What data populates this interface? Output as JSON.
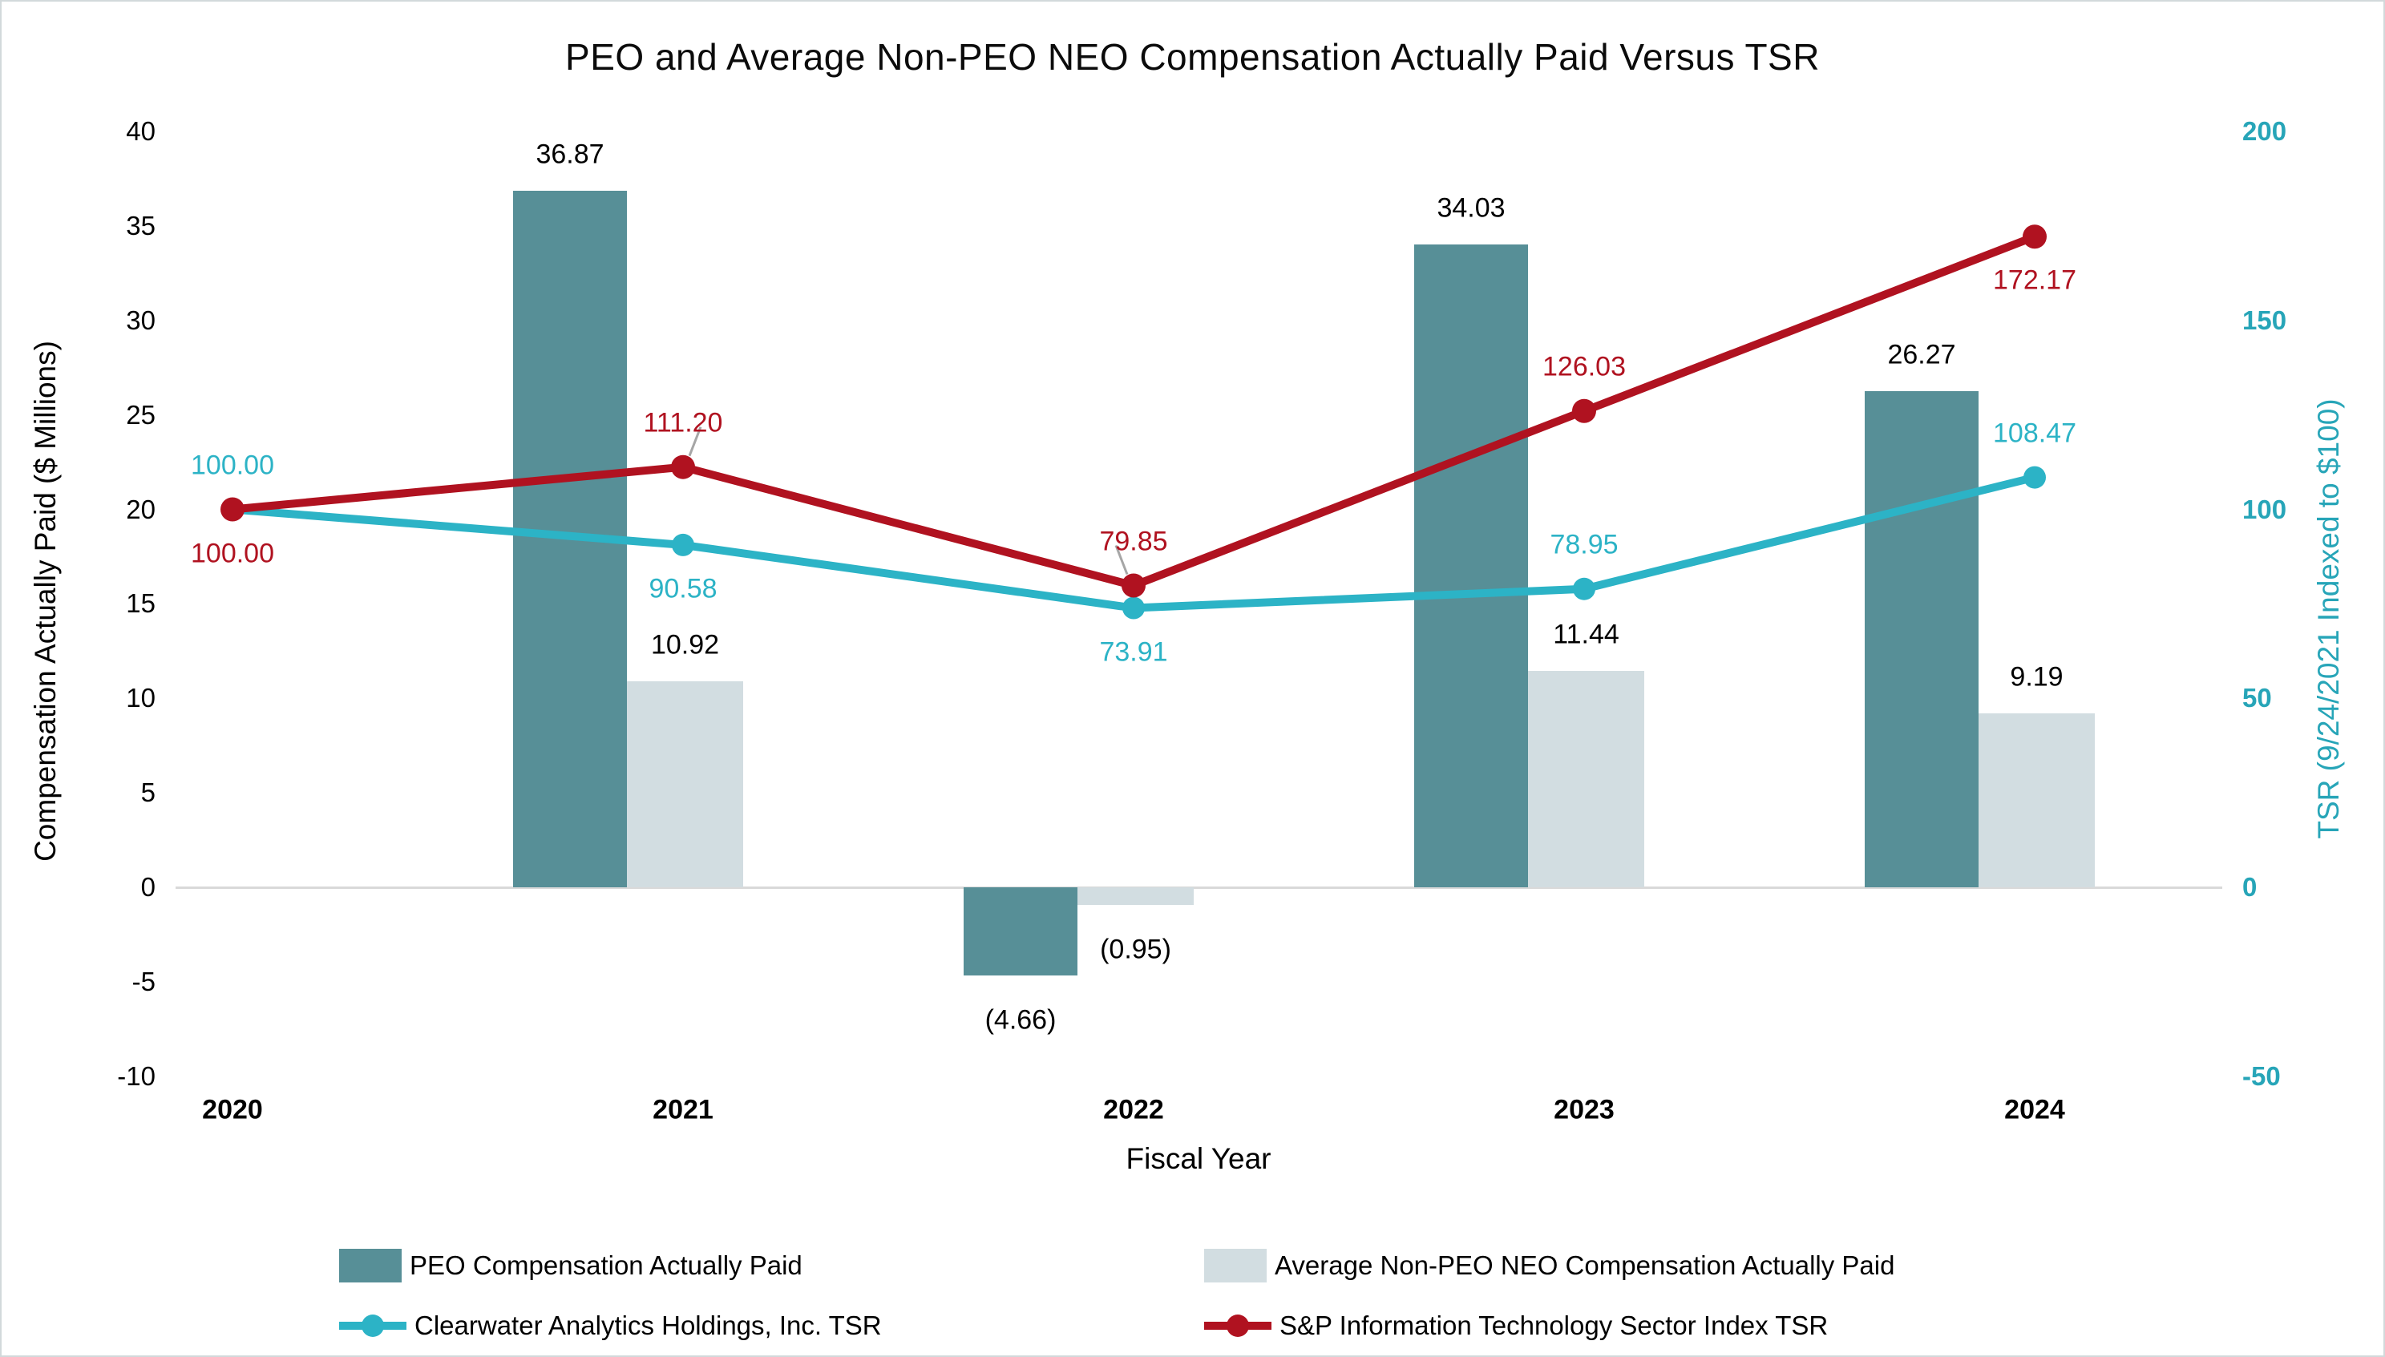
{
  "chart_data": {
    "type": "combo-bar-line",
    "title": "PEO and Average Non-PEO NEO Compensation Actually Paid Versus TSR",
    "categories": [
      "2020",
      "2021",
      "2022",
      "2023",
      "2024"
    ],
    "x_axis": {
      "title": "Fiscal Year"
    },
    "left_axis": {
      "title": "Compensation Actually Paid ($ Millions)",
      "range": [
        -10,
        40
      ],
      "ticks": [
        "40",
        "35",
        "30",
        "25",
        "20",
        "15",
        "10",
        "5",
        "0",
        "-5",
        "-10"
      ],
      "color": "#000000"
    },
    "right_axis": {
      "title": "TSR (9/24/2021 Indexed to $100)",
      "range": [
        -50,
        200
      ],
      "ticks": [
        "200",
        "150",
        "100",
        "50",
        "0",
        "-50"
      ],
      "color": "#27a5b8"
    },
    "gridline_color": "#d9d9d9",
    "leader_color": "#a6a6a6",
    "bar_series": [
      {
        "name": "PEO Compensation Actually Paid",
        "color": "#578f97",
        "values": [
          null,
          36.87,
          -4.66,
          34.03,
          26.27
        ],
        "labels": [
          "",
          "36.87",
          "(4.66)",
          "34.03",
          "26.27"
        ]
      },
      {
        "name": "Average Non-PEO NEO Compensation Actually Paid",
        "color": "#d2dde1",
        "values": [
          null,
          10.92,
          -0.95,
          11.44,
          9.19
        ],
        "labels": [
          "",
          "10.92",
          "(0.95)",
          "11.44",
          "9.19"
        ]
      }
    ],
    "line_series": [
      {
        "name": "Clearwater Analytics Holdings, Inc. TSR",
        "color": "#2cb3c6",
        "values": [
          100.0,
          90.58,
          73.91,
          78.95,
          108.47
        ],
        "labels": [
          "100.00",
          "90.58",
          "73.91",
          "78.95",
          "108.47"
        ],
        "label_side": [
          "above",
          "below",
          "below",
          "above",
          "above"
        ],
        "leaders": [
          0,
          0,
          0,
          0,
          0
        ]
      },
      {
        "name": "S&P Information Technology Sector Index TSR",
        "color": "#b01220",
        "values": [
          100.0,
          111.2,
          79.85,
          126.03,
          172.17
        ],
        "labels": [
          "100.00",
          "111.20",
          "79.85",
          "126.03",
          "172.17"
        ],
        "label_side": [
          "below",
          "above",
          "above",
          "above",
          "below"
        ],
        "leaders": [
          0,
          1,
          -1,
          0,
          0
        ]
      }
    ],
    "legend": [
      {
        "label": "PEO Compensation Actually Paid",
        "swatch": "bar",
        "color": "#578f97"
      },
      {
        "label": "Average Non-PEO NEO Compensation Actually Paid",
        "swatch": "bar",
        "color": "#d2dde1"
      },
      {
        "label": "Clearwater Analytics Holdings, Inc. TSR",
        "swatch": "line",
        "color": "#2cb3c6"
      },
      {
        "label": "S&P Information Technology Sector Index TSR",
        "swatch": "line",
        "color": "#b01220"
      }
    ]
  }
}
